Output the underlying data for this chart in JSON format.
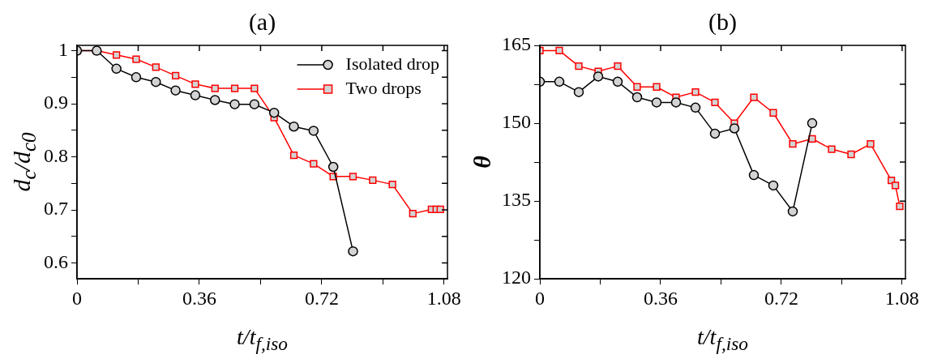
{
  "chart_data": [
    {
      "type": "line",
      "title": "(a)",
      "xlabel": "t/t$_{f,iso}$",
      "ylabel": "d$_{c}$/d$_{c0}$",
      "xlim": [
        0,
        1.09
      ],
      "ylim": [
        0.57,
        1.01
      ],
      "xticks": [
        0,
        {
          "value": 0.18,
          "label": null
        },
        0.36,
        {
          "value": 0.54,
          "label": null
        },
        0.72,
        {
          "value": 0.9,
          "label": null
        },
        1.08
      ],
      "yticks": [
        {
          "value": 0.6,
          "label": "0.6"
        },
        {
          "value": 0.65,
          "label": null
        },
        {
          "value": 0.7,
          "label": "0.7"
        },
        {
          "value": 0.75,
          "label": null
        },
        {
          "value": 0.8,
          "label": "0.8"
        },
        {
          "value": 0.85,
          "label": null
        },
        {
          "value": 0.9,
          "label": "0.9"
        },
        {
          "value": 0.95,
          "label": null
        },
        1
      ],
      "legend": "top right",
      "line_style": "solid",
      "series": [
        {
          "name": "Isolated drop",
          "color": "#000000",
          "marker": "circle",
          "x": [
            0,
            0.058,
            0.116,
            0.174,
            0.232,
            0.29,
            0.348,
            0.406,
            0.464,
            0.522,
            0.58,
            0.638,
            0.696,
            0.754,
            0.812
          ],
          "values": [
            1.0,
            1.0,
            0.966,
            0.95,
            0.941,
            0.925,
            0.916,
            0.907,
            0.899,
            0.899,
            0.883,
            0.857,
            0.849,
            0.781,
            0.622
          ]
        },
        {
          "name": "Two drops",
          "color": "#ff0000",
          "marker": "square",
          "x": [
            0,
            0.058,
            0.116,
            0.174,
            0.232,
            0.29,
            0.348,
            0.406,
            0.464,
            0.522,
            0.58,
            0.638,
            0.696,
            0.754,
            0.812,
            0.87,
            0.928,
            0.988,
            1.043,
            1.057,
            1.069
          ],
          "values": [
            1.0,
            1.0,
            0.992,
            0.984,
            0.969,
            0.953,
            0.937,
            0.929,
            0.929,
            0.929,
            0.874,
            0.803,
            0.787,
            0.763,
            0.763,
            0.756,
            0.748,
            0.693,
            0.701,
            0.701,
            0.701
          ]
        }
      ]
    },
    {
      "type": "line",
      "title": "(b)",
      "xlabel": "t/t$_{f,iso}$",
      "ylabel": "θ",
      "xlim": [
        0,
        1.09
      ],
      "ylim": [
        120,
        165
      ],
      "xticks": [
        0,
        {
          "value": 0.18,
          "label": null
        },
        0.36,
        {
          "value": 0.54,
          "label": null
        },
        0.72,
        {
          "value": 0.9,
          "label": null
        },
        1.08
      ],
      "yticks": [
        120,
        {
          "value": 127.5,
          "label": null
        },
        135,
        {
          "value": 142.5,
          "label": null
        },
        150,
        {
          "value": 157.5,
          "label": null
        },
        165
      ],
      "line_style": "solid",
      "series": [
        {
          "color": "#000000",
          "marker": "circle",
          "x": [
            0,
            0.058,
            0.116,
            0.174,
            0.232,
            0.29,
            0.348,
            0.406,
            0.464,
            0.522,
            0.58,
            0.638,
            0.696,
            0.754,
            0.812
          ],
          "values": [
            158,
            158,
            156,
            159,
            158,
            155,
            154,
            154,
            153,
            148,
            149,
            140,
            138,
            133,
            150
          ]
        },
        {
          "color": "#ff0000",
          "marker": "square",
          "x": [
            0,
            0.058,
            0.116,
            0.174,
            0.232,
            0.29,
            0.348,
            0.406,
            0.464,
            0.522,
            0.58,
            0.638,
            0.696,
            0.754,
            0.812,
            0.87,
            0.928,
            0.986,
            1.048,
            1.06,
            1.073
          ],
          "values": [
            164,
            164,
            161,
            160,
            161,
            157,
            157,
            155,
            156,
            154,
            150,
            155,
            152,
            146,
            147,
            145,
            144,
            146,
            139,
            138,
            134
          ]
        }
      ]
    }
  ]
}
